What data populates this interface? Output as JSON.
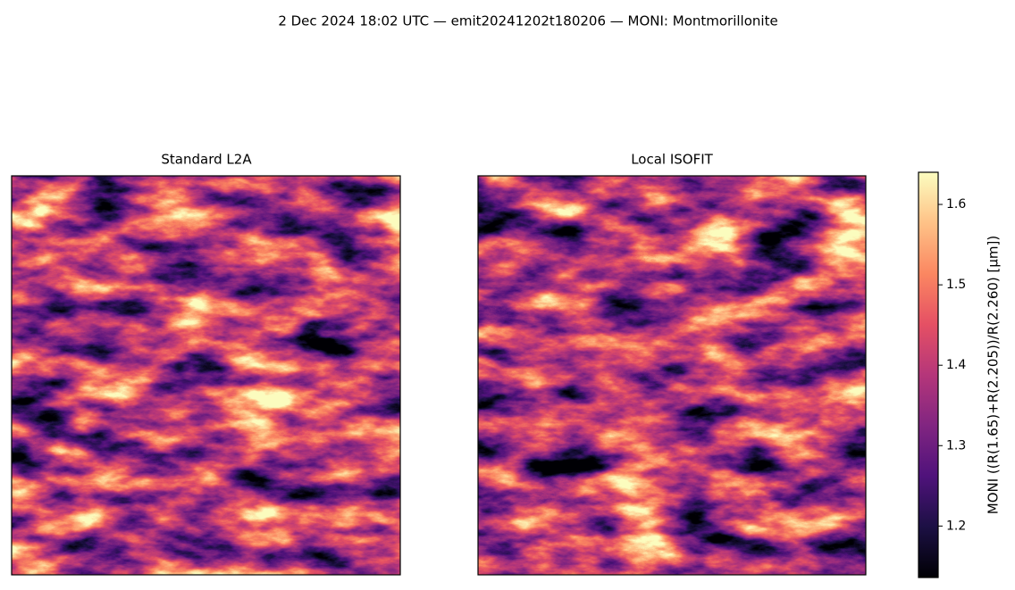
{
  "chart_data": {
    "type": "image",
    "title": "2 Dec 2024 18:02 UTC — emit20241202t180206 — MONI: Montmorillonite",
    "panels": [
      {
        "title": "Standard L2A"
      },
      {
        "title": "Local ISOFIT"
      }
    ],
    "colorbar": {
      "label": "MONI  ((R(1.65)+R(2.205))/R(2.260)  [µm])",
      "lim": [
        1.136,
        1.64
      ],
      "ticks": [
        1.2,
        1.3,
        1.4,
        1.5,
        1.6
      ],
      "colormap": [
        "#000004",
        "#1c1044",
        "#4f127b",
        "#812581",
        "#b5367a",
        "#e55064",
        "#fb8761",
        "#fec287",
        "#fcfdbf"
      ]
    }
  }
}
